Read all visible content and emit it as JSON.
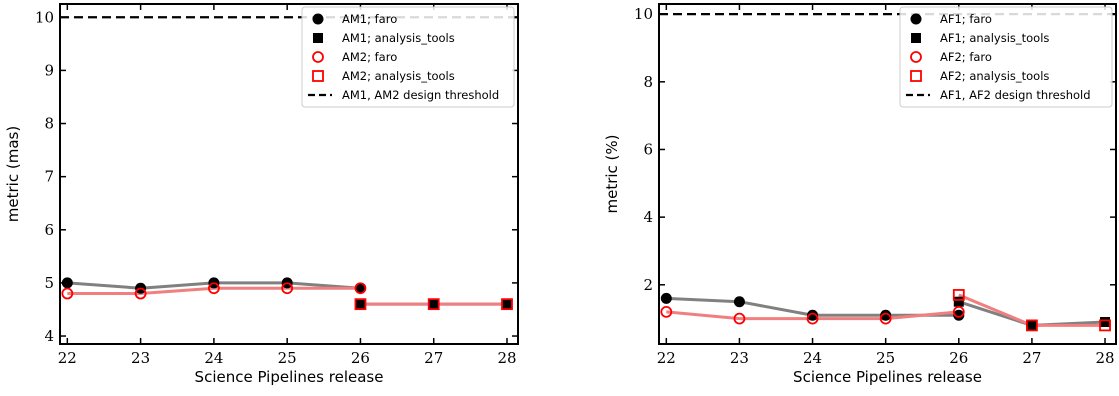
{
  "chart_data": [
    {
      "type": "line",
      "xlabel": "Science Pipelines release",
      "ylabel": "metric (mas)",
      "xlim": [
        21.9,
        28.15
      ],
      "ylim": [
        3.85,
        10.25
      ],
      "xticks": [
        "22",
        "23",
        "24",
        "25",
        "26",
        "27",
        "28"
      ],
      "yticks": [
        "4",
        "5",
        "6",
        "7",
        "8",
        "9",
        "10"
      ],
      "legend_position": "top-right",
      "series": [
        {
          "name": "AM1; faro",
          "color": "#000000",
          "line_color": "#808080",
          "marker": "filled-circle",
          "x": [
            22,
            23,
            24,
            25,
            26
          ],
          "y": [
            5.0,
            4.9,
            5.0,
            5.0,
            4.9
          ]
        },
        {
          "name": "AM1; analysis_tools",
          "color": "#000000",
          "line_color": "#808080",
          "marker": "filled-square",
          "x": [
            26,
            27,
            28
          ],
          "y": [
            4.6,
            4.6,
            4.6
          ]
        },
        {
          "name": "AM2; faro",
          "color": "#ff0000",
          "line_color": "#f08080",
          "marker": "open-circle",
          "x": [
            22,
            23,
            24,
            25,
            26
          ],
          "y": [
            4.8,
            4.8,
            4.9,
            4.9,
            4.9
          ]
        },
        {
          "name": "AM2; analysis_tools",
          "color": "#ff0000",
          "line_color": "#f08080",
          "marker": "open-square",
          "x": [
            26,
            27,
            28
          ],
          "y": [
            4.6,
            4.6,
            4.6
          ]
        }
      ],
      "threshold": {
        "name": "AM1, AM2 design threshold",
        "y": 10,
        "color": "#000000"
      }
    },
    {
      "type": "line",
      "xlabel": "Science Pipelines release",
      "ylabel": "metric (%)",
      "xlim": [
        21.9,
        28.15
      ],
      "ylim": [
        0.25,
        10.3
      ],
      "xticks": [
        "22",
        "23",
        "24",
        "25",
        "26",
        "27",
        "28"
      ],
      "yticks": [
        "2",
        "4",
        "6",
        "8",
        "10"
      ],
      "legend_position": "top-right",
      "series": [
        {
          "name": "AF1; faro",
          "color": "#000000",
          "line_color": "#808080",
          "marker": "filled-circle",
          "x": [
            22,
            23,
            24,
            25,
            26
          ],
          "y": [
            1.6,
            1.5,
            1.1,
            1.1,
            1.1
          ]
        },
        {
          "name": "AF1; analysis_tools",
          "color": "#000000",
          "line_color": "#808080",
          "marker": "filled-square",
          "x": [
            26,
            27,
            28
          ],
          "y": [
            1.5,
            0.8,
            0.9
          ]
        },
        {
          "name": "AF2; faro",
          "color": "#ff0000",
          "line_color": "#f08080",
          "marker": "open-circle",
          "x": [
            22,
            23,
            24,
            25,
            26
          ],
          "y": [
            1.2,
            1.0,
            1.0,
            1.0,
            1.2
          ]
        },
        {
          "name": "AF2; analysis_tools",
          "color": "#ff0000",
          "line_color": "#f08080",
          "marker": "open-square",
          "x": [
            26,
            27,
            28
          ],
          "y": [
            1.7,
            0.8,
            0.8
          ]
        }
      ],
      "threshold": {
        "name": "AF1, AF2 design threshold",
        "y": 10,
        "color": "#000000"
      }
    }
  ]
}
